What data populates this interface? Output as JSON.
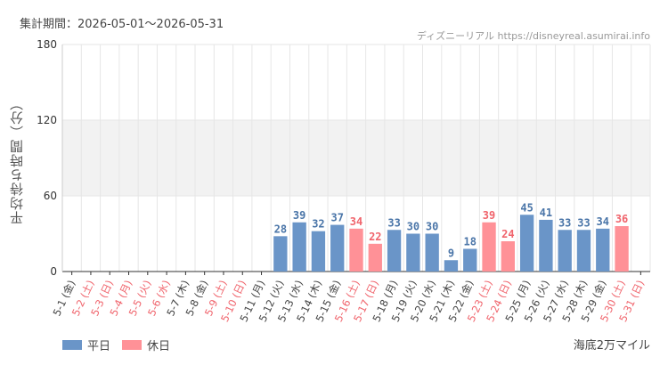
{
  "header": {
    "period": "集計期間：2026-05-01〜2026-05-31",
    "site": "ディズニーリアル https://disneyreal.asumirai.info"
  },
  "attraction": "海底2万マイル",
  "legend": {
    "weekday_label": "平日",
    "holiday_label": "休日"
  },
  "colors": {
    "weekday": "#6a95c8",
    "holiday": "#ff9197",
    "weekday_text": "#4a75a8",
    "holiday_text": "#f0646c",
    "band": "#f2f2f2",
    "grid": "#e6e6e6"
  },
  "chart_data": {
    "type": "bar",
    "ylabel": "平均待ち時間（分）",
    "ylim": [
      0,
      180
    ],
    "yticks": [
      "0",
      "60",
      "120",
      "180"
    ],
    "categories": [
      "5-1 (金)",
      "5-2 (土)",
      "5-3 (日)",
      "5-4 (月)",
      "5-5 (火)",
      "5-6 (水)",
      "5-7 (木)",
      "5-8 (金)",
      "5-9 (土)",
      "5-10 (日)",
      "5-11 (月)",
      "5-12 (火)",
      "5-13 (水)",
      "5-14 (木)",
      "5-15 (金)",
      "5-16 (土)",
      "5-17 (日)",
      "5-18 (月)",
      "5-19 (火)",
      "5-20 (水)",
      "5-21 (木)",
      "5-22 (金)",
      "5-23 (土)",
      "5-24 (日)",
      "5-25 (月)",
      "5-26 (火)",
      "5-27 (水)",
      "5-28 (木)",
      "5-29 (金)",
      "5-30 (土)",
      "5-31 (日)"
    ],
    "day_type": [
      "weekday",
      "holiday",
      "holiday",
      "holiday",
      "holiday",
      "holiday",
      "weekday",
      "weekday",
      "holiday",
      "holiday",
      "weekday",
      "weekday",
      "weekday",
      "weekday",
      "weekday",
      "holiday",
      "holiday",
      "weekday",
      "weekday",
      "weekday",
      "weekday",
      "weekday",
      "holiday",
      "holiday",
      "weekday",
      "weekday",
      "weekday",
      "weekday",
      "weekday",
      "holiday",
      "holiday"
    ],
    "values": [
      null,
      null,
      null,
      null,
      null,
      null,
      null,
      null,
      null,
      null,
      null,
      28,
      39,
      32,
      37,
      34,
      22,
      33,
      30,
      30,
      9,
      18,
      39,
      24,
      45,
      41,
      33,
      33,
      34,
      36,
      null
    ],
    "legend_position": "bottom-left",
    "grid": true
  }
}
